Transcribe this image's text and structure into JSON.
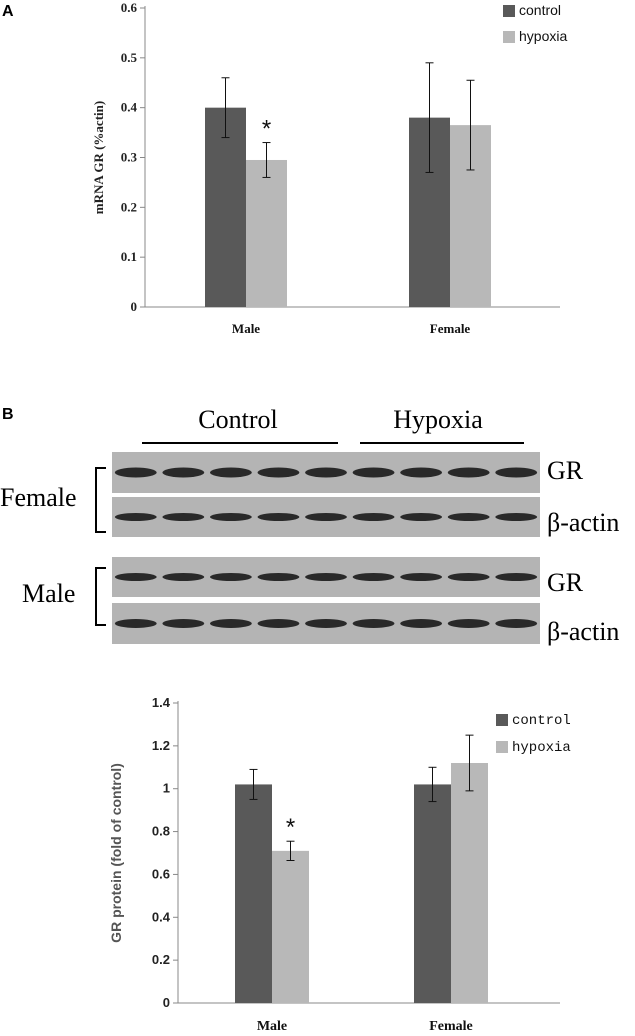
{
  "panels": {
    "a": {
      "label": "A",
      "chart_data": {
        "type": "bar",
        "categories": [
          "Male",
          "Female"
        ],
        "series": [
          {
            "name": "control",
            "values": [
              0.4,
              0.38
            ],
            "errors": [
              0.06,
              0.11
            ]
          },
          {
            "name": "hypoxia",
            "values": [
              0.295,
              0.365
            ],
            "errors": [
              0.035,
              0.09
            ]
          }
        ],
        "ylabel": "mRNA GR (%actin)",
        "ylim": [
          0,
          0.6
        ],
        "yticks": [
          "0",
          "0.1",
          "0.2",
          "0.3",
          "0.4",
          "0.5",
          "0.6"
        ],
        "legend": "top-right",
        "significance": [
          {
            "category": "Male",
            "series": "hypoxia",
            "mark": "*"
          }
        ],
        "colors": {
          "control": "#595959",
          "hypoxia": "#b8b8b8"
        }
      }
    },
    "b": {
      "label": "B",
      "blot": {
        "group_control": "Control",
        "group_hypoxia": "Hypoxia",
        "female_label": "Female",
        "male_label": "Male",
        "gr_label": "GR",
        "actin_label": "β-actin",
        "lanes_control": 5,
        "lanes_hypoxia": 4
      },
      "chart_data": {
        "type": "bar",
        "categories": [
          "Male",
          "Female"
        ],
        "series": [
          {
            "name": "control",
            "values": [
              1.02,
              1.02
            ],
            "errors": [
              0.07,
              0.08
            ]
          },
          {
            "name": "hypoxia",
            "values": [
              0.71,
              1.12
            ],
            "errors": [
              0.045,
              0.13
            ]
          }
        ],
        "ylabel": "GR protein (fold of control)",
        "ylim": [
          0,
          1.4
        ],
        "yticks": [
          "0",
          "0.2",
          "0.4",
          "0.6",
          "0.8",
          "1",
          "1.2",
          "1.4"
        ],
        "legend": "top-right",
        "significance": [
          {
            "category": "Male",
            "series": "hypoxia",
            "mark": "*"
          }
        ],
        "colors": {
          "control": "#595959",
          "hypoxia": "#b8b8b8"
        }
      }
    }
  }
}
